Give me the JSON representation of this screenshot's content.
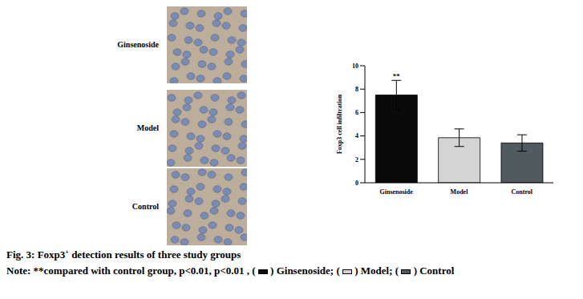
{
  "chart_data": {
    "type": "bar",
    "categories": [
      "Ginsenoside",
      "Model",
      "Control"
    ],
    "values": [
      7.5,
      3.85,
      3.4
    ],
    "errors": [
      1.25,
      0.75,
      0.7
    ],
    "colors": [
      "#0a0a0a",
      "#d4d4d4",
      "#4f5b5f"
    ],
    "y_label": "Foxp3 cell infiltration",
    "ylim": [
      0,
      10
    ],
    "yticks": [
      0,
      2,
      4,
      6,
      8,
      10
    ],
    "grid": false,
    "annotations": [
      {
        "category": "Ginsenoside",
        "text": "**"
      }
    ]
  },
  "figure": {
    "panels": [
      "Ginsenoside",
      "Model",
      "Control"
    ],
    "caption": {
      "title": [
        "Fig. 3: Foxp3",
        "+",
        " detection results of three study groups"
      ],
      "note": [
        "Note: **compared with control group, p<0.01, p<0.01 , ( ",
        " ) Ginsenoside; ( ",
        " ) Model; ( ",
        " ) Control"
      ]
    }
  }
}
